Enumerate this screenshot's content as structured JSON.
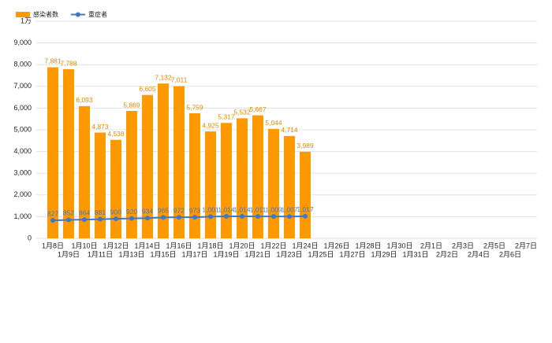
{
  "chart_data": {
    "type": "bar_line",
    "categories": [
      "1月8日",
      "1月9日",
      "1月10日",
      "1月11日",
      "1月12日",
      "1月13日",
      "1月14日",
      "1月15日",
      "1月16日",
      "1月17日",
      "1月18日",
      "1月19日",
      "1月20日",
      "1月21日",
      "1月22日",
      "1月23日",
      "1月24日",
      "1月25日",
      "1月26日",
      "1月27日",
      "1月28日",
      "1月29日",
      "1月30日",
      "1月31日",
      "2月1日",
      "2月2日",
      "2月3日",
      "2月4日",
      "2月5日",
      "2月6日",
      "2月7日"
    ],
    "series": [
      {
        "name": "感染者数",
        "type": "bar",
        "color": "#ff9900",
        "values": [
          7881,
          7788,
          6093,
          4873,
          4538,
          5869,
          6605,
          7132,
          7011,
          5759,
          4925,
          5317,
          5532,
          5667,
          5044,
          4714,
          3989,
          null,
          null,
          null,
          null,
          null,
          null,
          null,
          null,
          null,
          null,
          null,
          null,
          null,
          null
        ],
        "value_labels": [
          "7,881",
          "7,788",
          "6,093",
          "4,873",
          "4,538",
          "5,869",
          "6,605",
          "7,132",
          "7,011",
          "5,759",
          "4,925",
          "5,317",
          "5,532",
          "5,667",
          "5,044",
          "4,714",
          "3,989",
          null,
          null,
          null,
          null,
          null,
          null,
          null,
          null,
          null,
          null,
          null,
          null,
          null,
          null
        ]
      },
      {
        "name": "重症者",
        "type": "line",
        "color": "#3d78c9",
        "values": [
          827,
          852,
          864,
          881,
          900,
          920,
          934,
          965,
          972,
          973,
          1001,
          1014,
          1014,
          1011,
          1009,
          1007,
          1017,
          null,
          null,
          null,
          null,
          null,
          null,
          null,
          null,
          null,
          null,
          null,
          null,
          null,
          null
        ],
        "value_labels": [
          null,
          null,
          null,
          null,
          null,
          null,
          null,
          null,
          null,
          null,
          "1,001",
          "1,014",
          "1,014",
          "1,011",
          "1,009",
          "1,007",
          "1,017",
          null,
          null,
          null,
          null,
          null,
          null,
          null,
          null,
          null,
          null,
          null,
          null,
          null,
          null
        ]
      }
    ],
    "ylim": [
      0,
      10000
    ],
    "yticks": [
      0,
      {
        "value": 1000,
        "label": "1,000"
      },
      {
        "value": 2000,
        "label": "2,000"
      },
      {
        "value": 3000,
        "label": "3,000"
      },
      {
        "value": 4000,
        "label": "4,000"
      },
      {
        "value": 5000,
        "label": "5,000"
      },
      {
        "value": 6000,
        "label": "6,000"
      },
      {
        "value": 7000,
        "label": "7,000"
      },
      {
        "value": 8000,
        "label": "8,000"
      },
      {
        "value": 9000,
        "label": "9,000"
      },
      {
        "value": 10000,
        "label": "1万"
      }
    ],
    "grid": true,
    "legend": "top-left"
  }
}
